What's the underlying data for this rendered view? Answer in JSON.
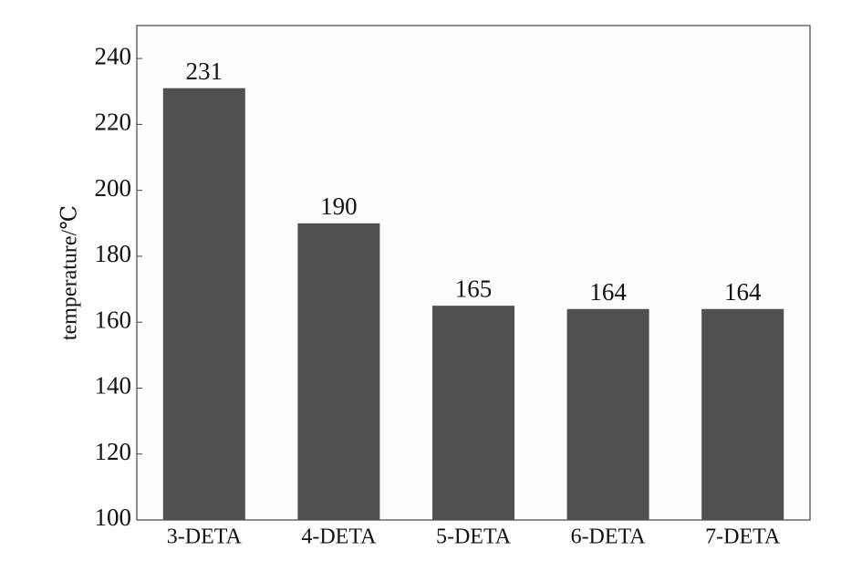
{
  "chart_data": {
    "type": "bar",
    "y_label": "temperature/℃",
    "categories": [
      "3-DETA",
      "4-DETA",
      "5-DETA",
      "6-DETA",
      "7-DETA"
    ],
    "values": [
      231,
      190,
      165,
      164,
      164
    ],
    "color": "#505050",
    "ylim": [
      100,
      250
    ],
    "yticks": [
      100,
      120,
      140,
      160,
      180,
      200,
      220,
      240
    ],
    "grid": false
  }
}
